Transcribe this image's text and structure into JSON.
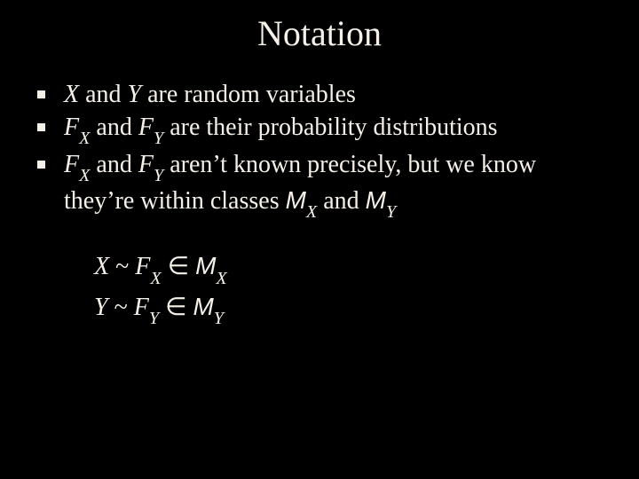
{
  "title": "Notation",
  "bullets": {
    "b1": {
      "pre": "X",
      "mid": " and ",
      "y": "Y",
      "post": " are random variables"
    },
    "b2": {
      "f": "F",
      "xsub": "X",
      "mid": " and ",
      "f2": "F",
      "ysub": "Y",
      "post": " are their probability distributions"
    },
    "b3": {
      "f": "F",
      "xsub": "X",
      "mid": " and ",
      "f2": "F",
      "ysub": "Y",
      "post1": " aren’t known precisely, but we know they’re within classes ",
      "m": "M",
      "mxsub": "X",
      "mid2": " and ",
      "m2": "M",
      "mysub": "Y"
    }
  },
  "formulas": {
    "line1": {
      "x": "X",
      "tilde": " ~ ",
      "f": "F",
      "xsub": "X",
      "sp": "  ",
      "elem": "∈",
      "sp2": "  ",
      "m": "M",
      "mxsub": "X"
    },
    "line2": {
      "y": "Y",
      "tilde": " ~ ",
      "f": "F",
      "ysub": "Y",
      "sp": "  ",
      "elem": "∈",
      "sp2": "  ",
      "m": "M",
      "mysub": "Y"
    }
  },
  "colors": {
    "background": "#000000",
    "text": "#f5f0e8"
  },
  "typography": {
    "title_fontsize": 40,
    "body_fontsize": 28,
    "font_family_serif": "Times New Roman",
    "font_family_sans_italic": "Arial"
  }
}
